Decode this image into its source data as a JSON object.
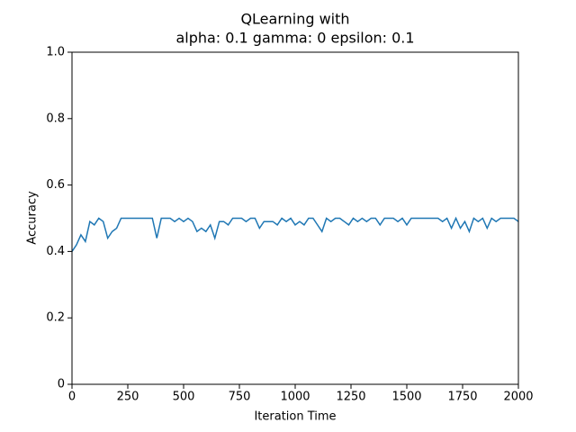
{
  "chart_data": {
    "type": "line",
    "title": [
      "QLearning with",
      "alpha: 0.1 gamma: 0 epsilon: 0.1"
    ],
    "xlabel": "Iteration Time",
    "ylabel": "Accuracy",
    "x": [
      0,
      20,
      40,
      60,
      80,
      100,
      120,
      140,
      160,
      180,
      200,
      220,
      240,
      260,
      280,
      300,
      320,
      340,
      360,
      380,
      400,
      420,
      440,
      460,
      480,
      500,
      520,
      540,
      560,
      580,
      600,
      620,
      640,
      660,
      680,
      700,
      720,
      740,
      760,
      780,
      800,
      820,
      840,
      860,
      880,
      900,
      920,
      940,
      960,
      980,
      1000,
      1020,
      1040,
      1060,
      1080,
      1100,
      1120,
      1140,
      1160,
      1180,
      1200,
      1220,
      1240,
      1260,
      1280,
      1300,
      1320,
      1340,
      1360,
      1380,
      1400,
      1420,
      1440,
      1460,
      1480,
      1500,
      1520,
      1540,
      1560,
      1580,
      1600,
      1620,
      1640,
      1660,
      1680,
      1700,
      1720,
      1740,
      1760,
      1780,
      1800,
      1820,
      1840,
      1860,
      1880,
      1900,
      1920,
      1940,
      1960,
      1980,
      2000
    ],
    "series": [
      {
        "color": "#1f77b4",
        "values": [
          0.4,
          0.42,
          0.45,
          0.43,
          0.49,
          0.48,
          0.5,
          0.49,
          0.44,
          0.46,
          0.47,
          0.5,
          0.5,
          0.5,
          0.5,
          0.5,
          0.5,
          0.5,
          0.5,
          0.44,
          0.5,
          0.5,
          0.5,
          0.49,
          0.5,
          0.49,
          0.5,
          0.49,
          0.46,
          0.47,
          0.46,
          0.48,
          0.44,
          0.49,
          0.49,
          0.48,
          0.5,
          0.5,
          0.5,
          0.49,
          0.5,
          0.5,
          0.47,
          0.49,
          0.49,
          0.49,
          0.48,
          0.5,
          0.49,
          0.5,
          0.48,
          0.49,
          0.48,
          0.5,
          0.5,
          0.48,
          0.46,
          0.5,
          0.49,
          0.5,
          0.5,
          0.49,
          0.48,
          0.5,
          0.49,
          0.5,
          0.49,
          0.5,
          0.5,
          0.48,
          0.5,
          0.5,
          0.5,
          0.49,
          0.5,
          0.48,
          0.5,
          0.5,
          0.5,
          0.5,
          0.5,
          0.5,
          0.5,
          0.49,
          0.5,
          0.47,
          0.5,
          0.47,
          0.49,
          0.46,
          0.5,
          0.49,
          0.5,
          0.47,
          0.5,
          0.49,
          0.5,
          0.5,
          0.5,
          0.5,
          0.49
        ]
      }
    ],
    "xlim": [
      0,
      2000
    ],
    "xticks": [
      0,
      250,
      500,
      750,
      1000,
      1250,
      1500,
      1750,
      2000
    ],
    "ylim": [
      0,
      1
    ],
    "yticks": [
      0,
      {
        "value": 0.2,
        "label": "0.2"
      },
      {
        "value": 0.4,
        "label": "0.4"
      },
      {
        "value": 0.6,
        "label": "0.6"
      },
      {
        "value": 0.8,
        "label": "0.8"
      },
      {
        "value": 1,
        "label": "1.0"
      }
    ],
    "grid": false
  }
}
